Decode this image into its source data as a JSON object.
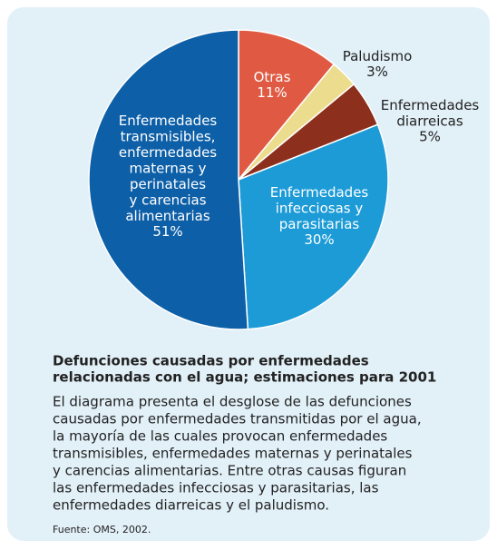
{
  "chart_data": {
    "type": "pie",
    "categories": [
      "Otras",
      "Paludismo",
      "Enfermedades\ndiarreicas",
      "Enfermedades\ninfecciosas y\nparasitarias",
      "Enfermedades\ntransmisibles,\nenfermedades\nmaternas y\nperinatales\ny carencias\nalimentarias"
    ],
    "values": [
      11,
      3,
      5,
      30,
      51
    ],
    "value_labels": [
      "11%",
      "3%",
      "5%",
      "30%",
      "51%"
    ],
    "colors": [
      "#e05a43",
      "#ecdc8e",
      "#8c2f1c",
      "#1c9bd7",
      "#0d5fa7"
    ]
  },
  "caption": {
    "title": [
      "Defunciones causadas por enfermedades",
      "relacionadas con el agua; estimaciones para 2001"
    ],
    "body": [
      "El diagrama presenta el desglose de las defunciones",
      "causadas por enfermedades transmitidas por el agua,",
      "la mayoría de las cuales provocan enfermedades",
      "transmisibles, enfermedades maternas y perinatales",
      "y carencias alimentarias.  Entre otras causas figuran",
      "las enfermedades infecciosas y parasitarias, las",
      "enfermedades diarreicas y el paludismo."
    ],
    "source": "Fuente: OMS, 2002."
  }
}
